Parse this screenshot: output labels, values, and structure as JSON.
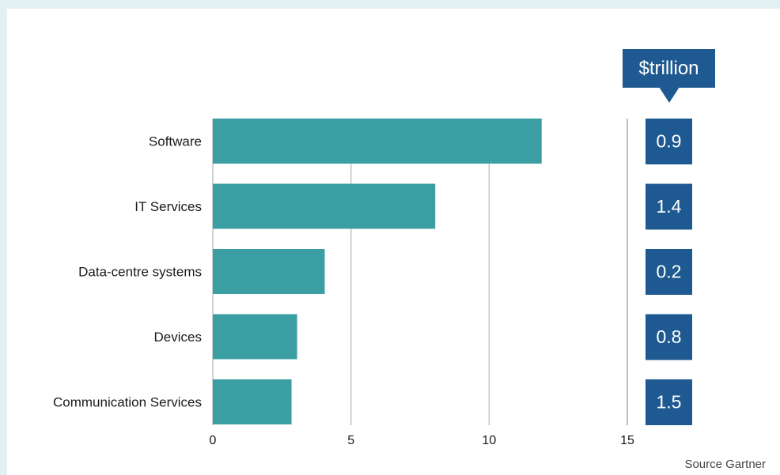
{
  "chart_data": {
    "type": "bar",
    "orientation": "horizontal",
    "categories": [
      "Software",
      "IT Services",
      "Data-centre systems",
      "Devices",
      "Communication Services"
    ],
    "values": [
      11.9,
      8.05,
      4.05,
      3.05,
      2.85
    ],
    "xlim": [
      0,
      15
    ],
    "x_ticks": [
      0,
      5,
      10,
      15
    ],
    "grid": true,
    "bar_color": "#3a9ea2",
    "side_panel": {
      "unit_label": "$trillion",
      "values": [
        "0.9",
        "1.4",
        "0.2",
        "0.8",
        "1.5"
      ],
      "box_color": "#1e5a91"
    },
    "source": "Source Gartner"
  }
}
